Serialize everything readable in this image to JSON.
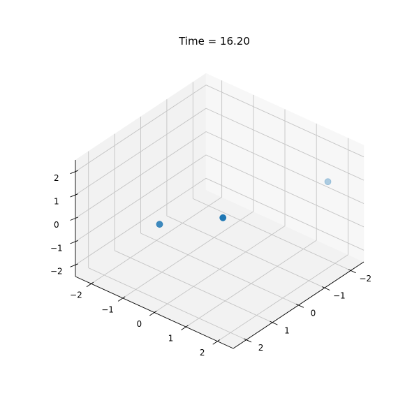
{
  "chart_data": {
    "type": "scatter",
    "projection": "3d",
    "title": "Time = 16.20",
    "xlabel": "",
    "ylabel": "",
    "zlabel": "",
    "xlim": [
      -2.5,
      2.5
    ],
    "ylim": [
      -2.5,
      2.5
    ],
    "zlim": [
      -2.5,
      2.5
    ],
    "xticks": [
      -2,
      -1,
      0,
      1,
      2
    ],
    "yticks": [
      -2,
      -1,
      0,
      1,
      2
    ],
    "zticks": [
      -2,
      -1,
      0,
      1,
      2
    ],
    "xtick_labels": [
      "−2",
      "−1",
      "0",
      "1",
      "2"
    ],
    "ytick_labels": [
      "−2",
      "−1",
      "0",
      "1",
      "2"
    ],
    "ztick_labels": [
      "−2",
      "−1",
      "0",
      "1",
      "2"
    ],
    "grid": true,
    "marker_color": "#1f77b4",
    "points": [
      {
        "x": -1.97,
        "y": 1.8,
        "z": 0.9,
        "depth_alpha": 0.35
      },
      {
        "x": -0.84,
        "y": -0.59,
        "z": -1.28,
        "depth_alpha": 1.0
      },
      {
        "x": -0.6,
        "y": -2.4,
        "z": -2.5,
        "depth_alpha": 0.85
      }
    ]
  }
}
